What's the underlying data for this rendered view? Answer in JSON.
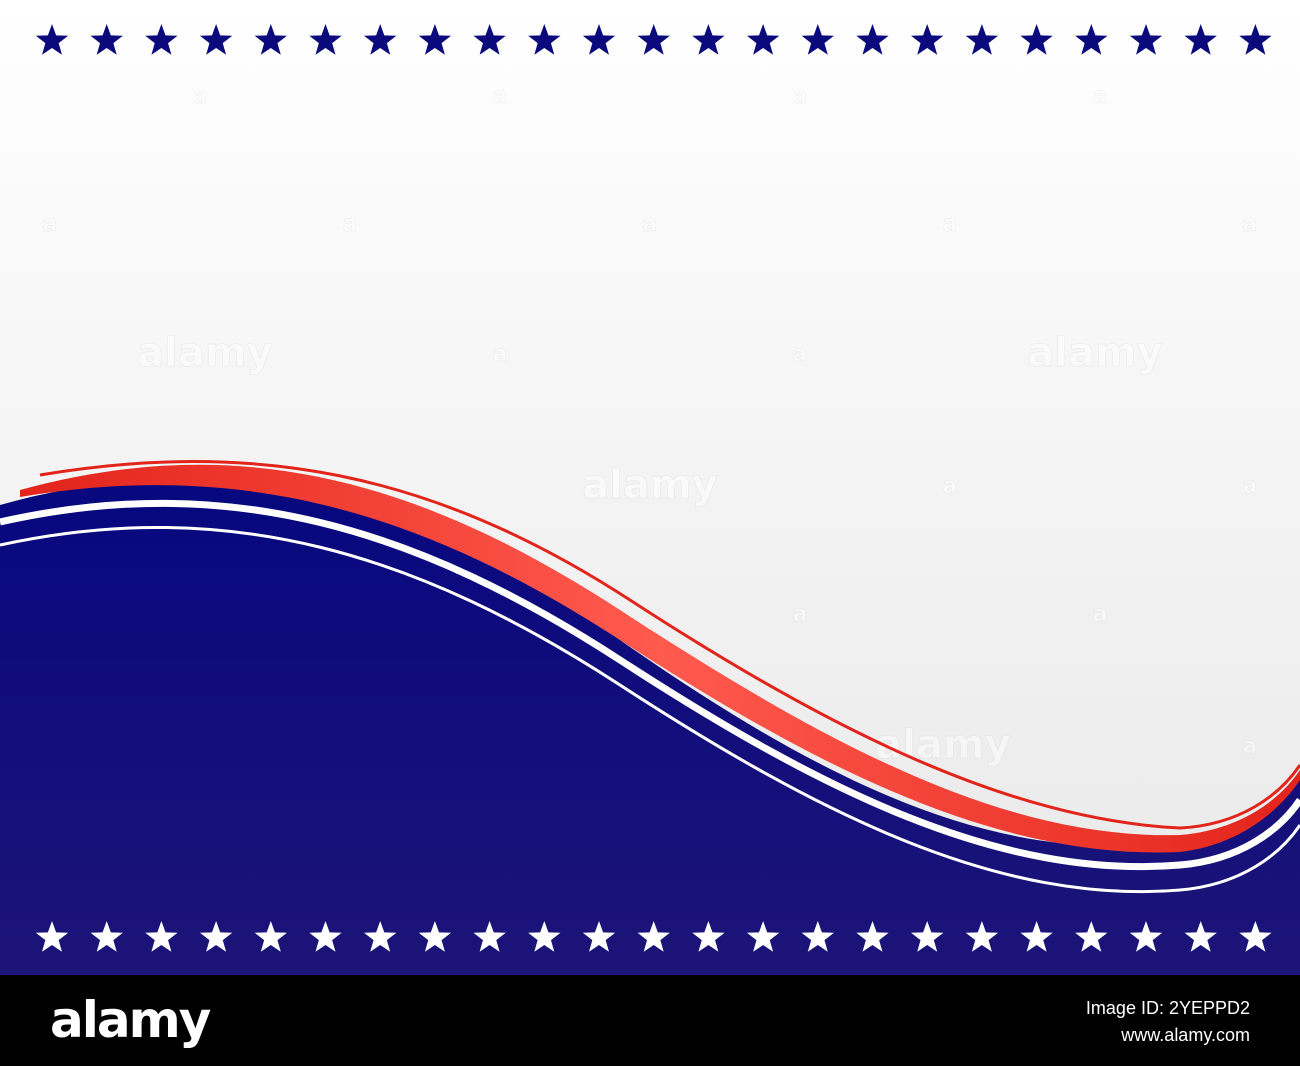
{
  "image": {
    "description_colors": {
      "navy": "#0a0a7d",
      "red": "#e3241b",
      "white": "#ffffff",
      "background_top": "#ffffff",
      "background_bottom": "#ececec"
    },
    "top_star_count": 23,
    "bottom_star_count": 23
  },
  "watermark": {
    "text": "alamy",
    "small_mark": "a"
  },
  "footer": {
    "logo": "alamy",
    "image_id": "Image ID: 2YEPPD2",
    "site": "www.alamy.com"
  }
}
